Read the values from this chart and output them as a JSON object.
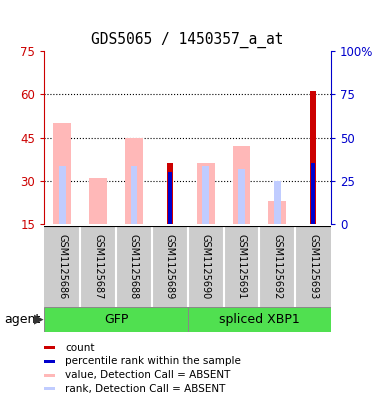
{
  "title": "GDS5065 / 1450357_a_at",
  "samples": [
    "GSM1125686",
    "GSM1125687",
    "GSM1125688",
    "GSM1125689",
    "GSM1125690",
    "GSM1125691",
    "GSM1125692",
    "GSM1125693"
  ],
  "ylim_left": [
    15,
    75
  ],
  "ylim_right": [
    0,
    100
  ],
  "yticks_left": [
    15,
    30,
    45,
    60,
    75
  ],
  "yticks_right": [
    0,
    25,
    50,
    75,
    100
  ],
  "pink_values": [
    50,
    31,
    45,
    0,
    36,
    42,
    23,
    0
  ],
  "lightblue_values": [
    35,
    0,
    35,
    0,
    35,
    34,
    30,
    0
  ],
  "red_values": [
    0,
    0,
    0,
    36,
    0,
    0,
    0,
    61
  ],
  "blue_values": [
    0,
    0,
    0,
    33,
    0,
    0,
    0,
    36
  ],
  "groups": [
    {
      "label": "GFP",
      "start": 0,
      "end": 4,
      "color_light": "#d8f8d8",
      "color_dark": "#50e050"
    },
    {
      "label": "spliced XBP1",
      "start": 4,
      "end": 8,
      "color_light": "#50e050",
      "color_dark": "#50e050"
    }
  ],
  "agent_label": "agent",
  "bar_width": 0.5,
  "pink_color": "#ffb8b8",
  "lightblue_color": "#c0ccff",
  "red_color": "#cc0000",
  "blue_color": "#0000cc",
  "left_axis_color": "#cc0000",
  "right_axis_color": "#0000cc",
  "background_color": "#ffffff",
  "plot_bg": "#ffffff",
  "sample_bg": "#cccccc",
  "dotted_lines": [
    30,
    45,
    60
  ],
  "legend_items": [
    {
      "color": "#cc0000",
      "label": "count"
    },
    {
      "color": "#0000cc",
      "label": "percentile rank within the sample"
    },
    {
      "color": "#ffb8b8",
      "label": "value, Detection Call = ABSENT"
    },
    {
      "color": "#c0ccff",
      "label": "rank, Detection Call = ABSENT"
    }
  ]
}
